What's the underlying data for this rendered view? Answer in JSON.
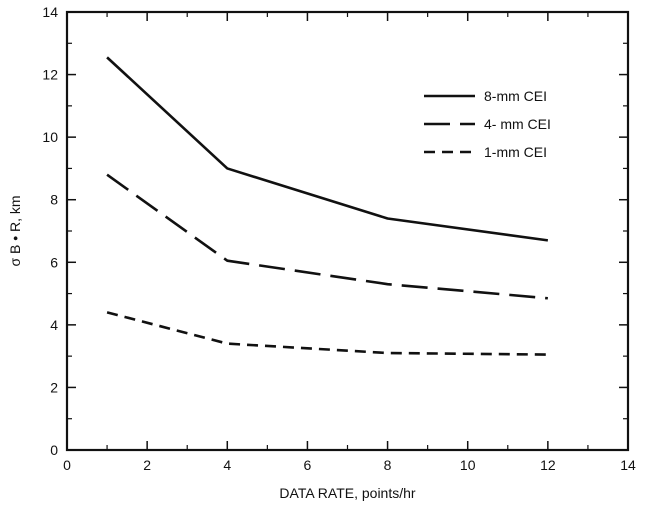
{
  "chart_data": {
    "type": "line",
    "xlabel": "DATA RATE, points/hr",
    "ylabel": "σ B • R, km",
    "xlim": [
      0,
      14
    ],
    "ylim": [
      0,
      14
    ],
    "xticks": [
      0,
      2,
      4,
      6,
      8,
      10,
      12,
      14
    ],
    "yticks": [
      0,
      2,
      4,
      6,
      8,
      10,
      12,
      14
    ],
    "grid": false,
    "legend_position": "top-right",
    "series": [
      {
        "name": "8-mm CEI",
        "style": "solid",
        "x": [
          1,
          4,
          8,
          12
        ],
        "y": [
          12.55,
          9.0,
          7.4,
          6.7
        ]
      },
      {
        "name": "4- mm CEI",
        "style": "long-dash",
        "x": [
          1,
          4,
          8,
          12
        ],
        "y": [
          8.8,
          6.05,
          5.3,
          4.85
        ]
      },
      {
        "name": "1-mm CEI",
        "style": "short-dash",
        "x": [
          1,
          4,
          8,
          12
        ],
        "y": [
          4.4,
          3.4,
          3.1,
          3.05
        ]
      }
    ]
  }
}
